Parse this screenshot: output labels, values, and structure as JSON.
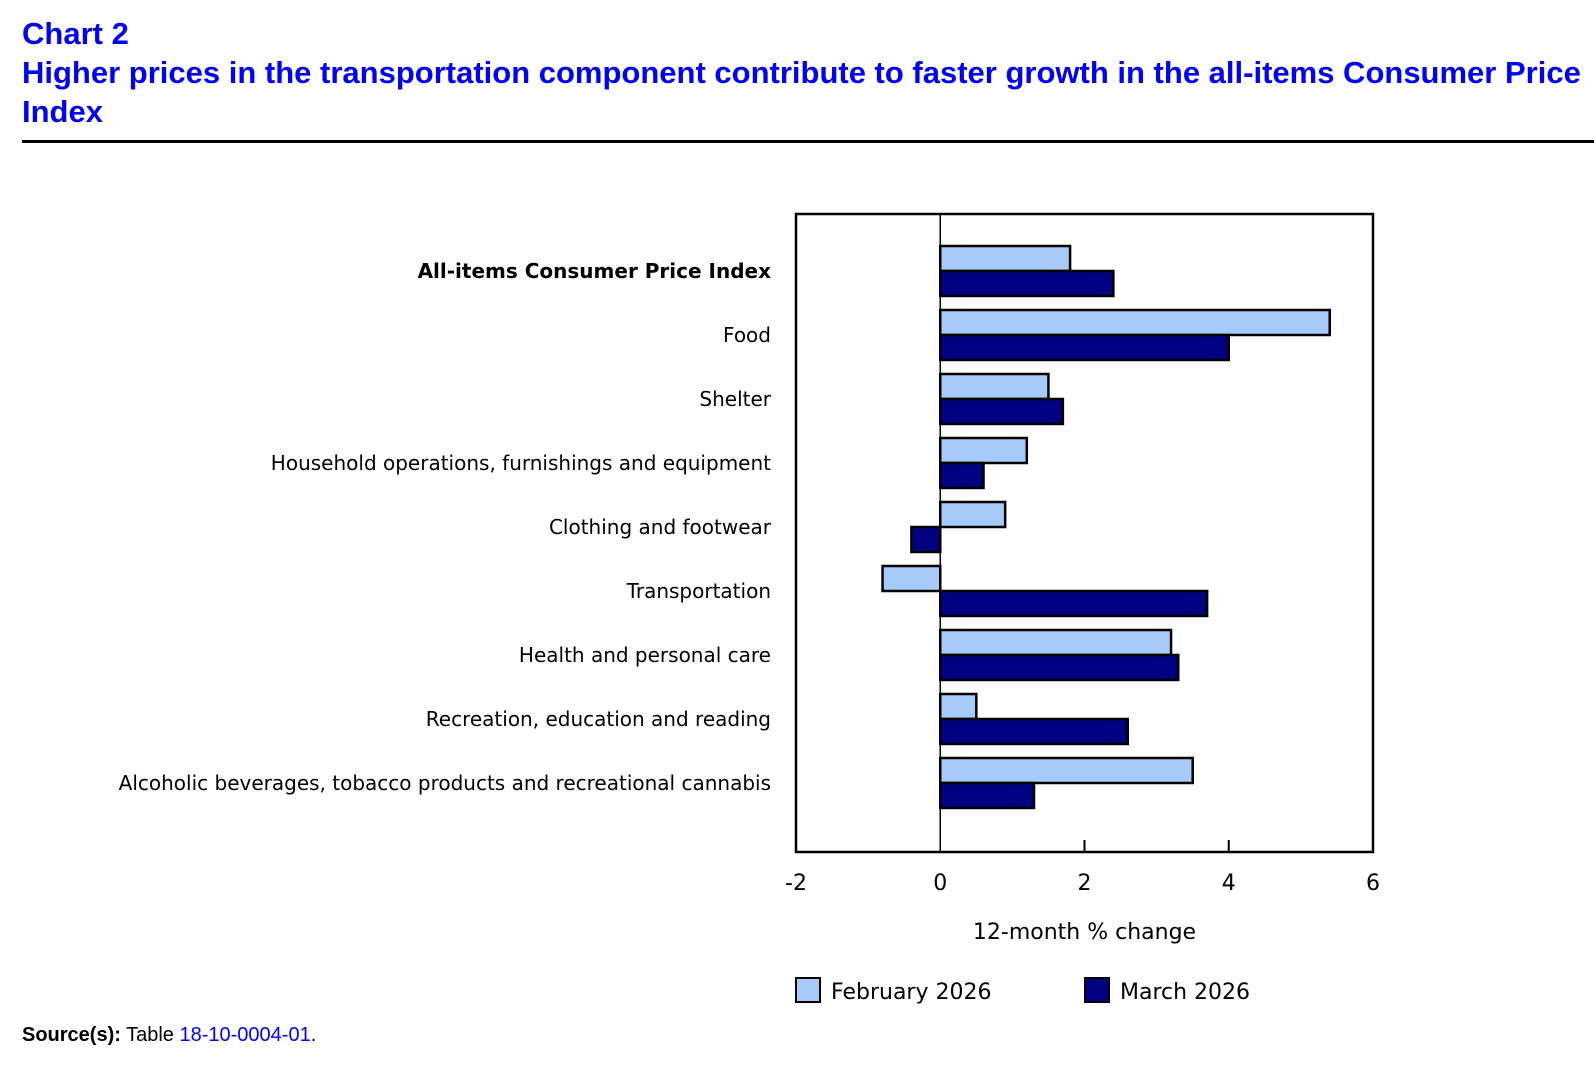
{
  "header": {
    "chart_number": "Chart 2",
    "title": "Higher prices in the transportation component contribute to faster growth in the all-items Consumer Price Index"
  },
  "source": {
    "label": "Source(s):",
    "text": "Table",
    "link": "18-10-0004-01",
    "suffix": "."
  },
  "chart_data": {
    "type": "bar",
    "orientation": "horizontal",
    "title": "Higher prices in the transportation component contribute to faster growth in the all-items Consumer Price Index",
    "xlabel": "12-month % change",
    "ylabel": "",
    "xlim": [
      -2,
      6
    ],
    "xticks": [
      -2,
      0,
      2,
      4,
      6
    ],
    "grid": false,
    "legend_position": "bottom",
    "categories": [
      "All-items Consumer Price Index",
      "Food",
      "Shelter",
      "Household operations, furnishings and equipment",
      "Clothing and footwear",
      "Transportation",
      "Health and personal care",
      "Recreation, education and reading",
      "Alcoholic beverages, tobacco products and recreational cannabis"
    ],
    "bold_categories": [
      "All-items Consumer Price Index"
    ],
    "series": [
      {
        "name": "February 2026",
        "color": "#a6cbf9",
        "values": [
          1.8,
          5.4,
          1.5,
          1.2,
          0.9,
          -0.8,
          3.2,
          0.5,
          3.5
        ]
      },
      {
        "name": "March 2026",
        "color": "#000080",
        "values": [
          2.4,
          4.0,
          1.7,
          0.6,
          -0.4,
          3.7,
          3.3,
          2.6,
          1.3
        ]
      }
    ]
  }
}
